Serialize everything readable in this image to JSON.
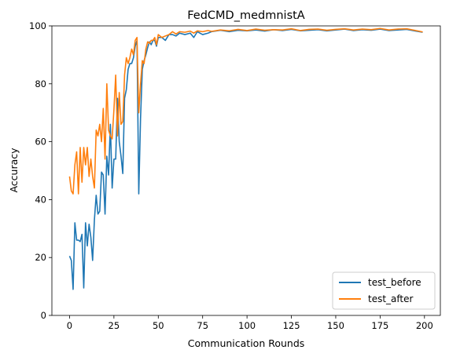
{
  "chart_data": {
    "type": "line",
    "title": "FedCMD_medmnistA",
    "xlabel": "Communication Rounds",
    "ylabel": "Accuracy",
    "xlim": [
      -9.95,
      208.95
    ],
    "ylim": [
      0,
      100
    ],
    "xticks": [
      0,
      25,
      50,
      75,
      100,
      125,
      150,
      175,
      200
    ],
    "yticks": [
      0,
      20,
      40,
      60,
      80,
      100
    ],
    "grid": false,
    "legend_position": "lower-right",
    "series": [
      {
        "name": "test_before",
        "color": "#1f77b4",
        "x": [
          0,
          1,
          2,
          3,
          4,
          5,
          6,
          7,
          8,
          9,
          10,
          11,
          12,
          13,
          14,
          15,
          16,
          17,
          18,
          19,
          20,
          21,
          22,
          23,
          24,
          25,
          26,
          27,
          28,
          29,
          30,
          31,
          32,
          33,
          34,
          35,
          36,
          37,
          38,
          39,
          40,
          41,
          42,
          43,
          44,
          45,
          46,
          47,
          48,
          49,
          50,
          52,
          54,
          56,
          58,
          60,
          62,
          65,
          68,
          70,
          72,
          75,
          78,
          80,
          85,
          90,
          95,
          100,
          105,
          110,
          115,
          120,
          125,
          130,
          135,
          140,
          145,
          150,
          155,
          160,
          165,
          170,
          175,
          180,
          185,
          190,
          195,
          199
        ],
        "values": [
          20.5,
          19,
          9,
          32,
          26,
          26,
          25.5,
          28,
          9.5,
          32,
          24,
          31.5,
          27,
          19,
          33,
          41.5,
          35,
          36,
          49.5,
          48.5,
          35,
          55,
          48.5,
          66,
          44,
          54,
          54,
          75,
          60,
          55,
          49,
          75,
          78,
          85,
          87,
          87,
          89,
          93,
          95,
          42,
          68,
          85,
          88,
          90,
          92.5,
          94.5,
          93.5,
          95,
          95,
          93,
          96,
          96,
          95,
          97,
          97,
          96.5,
          97.5,
          97,
          97.5,
          96,
          98,
          97,
          97.5,
          98,
          98.5,
          98,
          98.5,
          98.3,
          98.6,
          98.2,
          98.7,
          98.4,
          98.8,
          98.3,
          98.5,
          98.7,
          98.3,
          98.6,
          98.9,
          98.4,
          98.7,
          98.5,
          98.9,
          98.4,
          98.6,
          98.8,
          98.2,
          97.8
        ]
      },
      {
        "name": "test_after",
        "color": "#ff7f0e",
        "x": [
          0,
          1,
          2,
          3,
          4,
          5,
          6,
          7,
          8,
          9,
          10,
          11,
          12,
          13,
          14,
          15,
          16,
          17,
          18,
          19,
          20,
          21,
          22,
          23,
          24,
          25,
          26,
          27,
          28,
          29,
          30,
          31,
          32,
          33,
          34,
          35,
          36,
          37,
          38,
          39,
          40,
          41,
          42,
          43,
          44,
          45,
          46,
          47,
          48,
          49,
          50,
          52,
          54,
          56,
          58,
          60,
          62,
          65,
          68,
          70,
          72,
          75,
          78,
          80,
          85,
          90,
          95,
          100,
          105,
          110,
          115,
          120,
          125,
          130,
          135,
          140,
          145,
          150,
          155,
          160,
          165,
          170,
          175,
          180,
          185,
          190,
          195,
          199
        ],
        "values": [
          48,
          43,
          42,
          52,
          56.5,
          42,
          58,
          46,
          58,
          52,
          58,
          48,
          54,
          48,
          44,
          64,
          62,
          66,
          60,
          71.5,
          54,
          80,
          64,
          62,
          61,
          71,
          83,
          62,
          77,
          66,
          67,
          83,
          89,
          87,
          89,
          92,
          90,
          95,
          96,
          70,
          80,
          88,
          87,
          92,
          94.5,
          94,
          95,
          95,
          96,
          93.5,
          97,
          96,
          96.5,
          97,
          98,
          97.2,
          98,
          97.8,
          98.2,
          97.5,
          98.3,
          98,
          98.4,
          98.1,
          98.6,
          98.3,
          98.8,
          98.4,
          98.9,
          98.5,
          98.7,
          98.6,
          99,
          98.4,
          98.8,
          98.9,
          98.5,
          98.8,
          99,
          98.6,
          98.9,
          98.7,
          99.1,
          98.6,
          98.9,
          99,
          98.4,
          97.9
        ]
      }
    ]
  }
}
